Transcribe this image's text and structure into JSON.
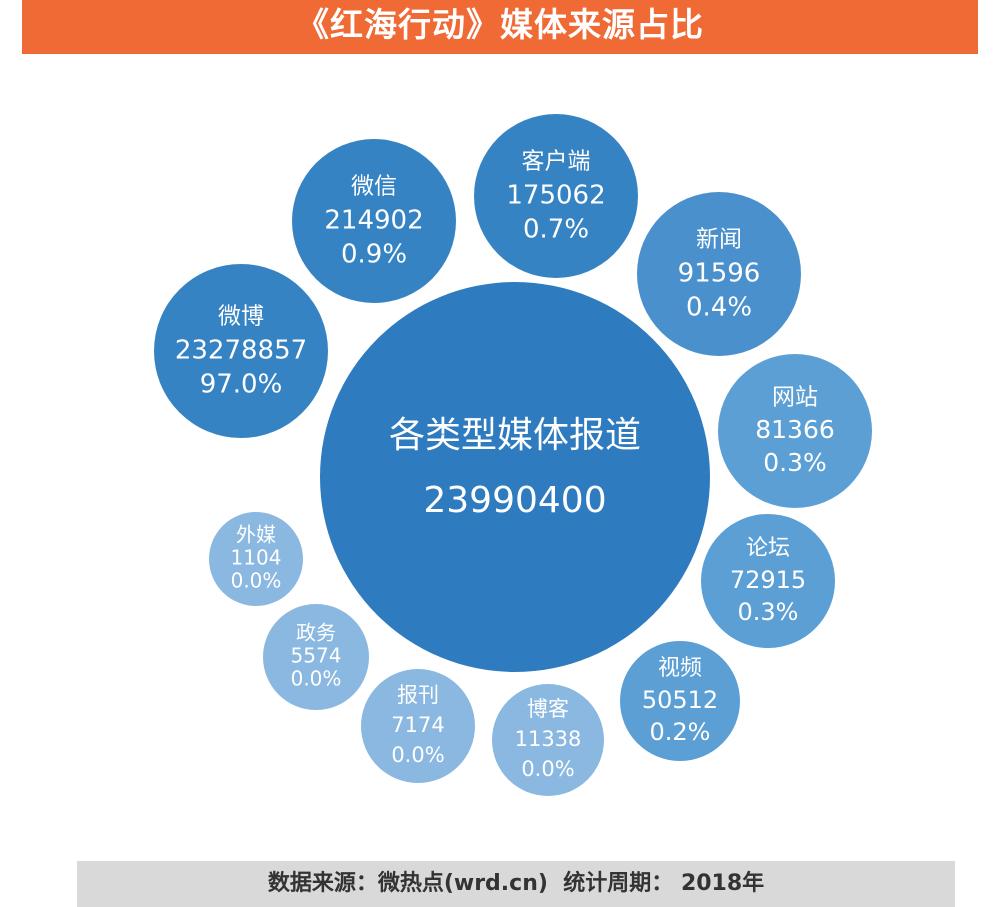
{
  "title": "《红海行动》媒体来源占比",
  "footer": {
    "source_label": "数据来源：微热点(wrd.cn)",
    "period_label": "统计周期：",
    "period_value": "2018年"
  },
  "colors": {
    "title_bg": "#ef6a35",
    "center": "#2e7bbf",
    "large": "#3683c4",
    "medium": "#4a90cc",
    "light": "#5c9fd5",
    "pale": "#8ab8e1",
    "footer_bg": "#d9d9d9"
  },
  "chart_data": {
    "type": "bubble",
    "center": {
      "label": "各类型媒体报道",
      "value": 23990400
    },
    "items": [
      {
        "label": "微博",
        "value": 23278857,
        "percent": "97.0%"
      },
      {
        "label": "微信",
        "value": 214902,
        "percent": "0.9%"
      },
      {
        "label": "客户端",
        "value": 175062,
        "percent": "0.7%"
      },
      {
        "label": "新闻",
        "value": 91596,
        "percent": "0.4%"
      },
      {
        "label": "网站",
        "value": 81366,
        "percent": "0.3%"
      },
      {
        "label": "论坛",
        "value": 72915,
        "percent": "0.3%"
      },
      {
        "label": "视频",
        "value": 50512,
        "percent": "0.2%"
      },
      {
        "label": "博客",
        "value": 11338,
        "percent": "0.0%"
      },
      {
        "label": "报刊",
        "value": 7174,
        "percent": "0.0%"
      },
      {
        "label": "政务",
        "value": 5574,
        "percent": "0.0%"
      },
      {
        "label": "外媒",
        "value": 1104,
        "percent": "0.0%"
      }
    ]
  }
}
